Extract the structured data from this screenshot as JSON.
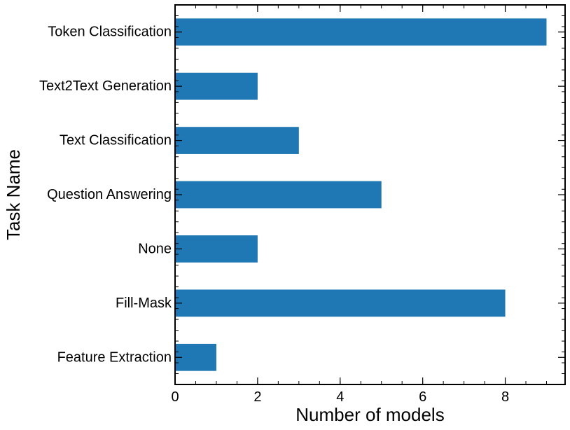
{
  "chart_data": {
    "type": "bar",
    "orientation": "horizontal",
    "categories": [
      "Token Classification",
      "Text2Text Generation",
      "Text Classification",
      "Question Answering",
      "None",
      "Fill-Mask",
      "Feature Extraction"
    ],
    "values": [
      9,
      2,
      3,
      5,
      2,
      8,
      1
    ],
    "xlabel": "Number of models",
    "ylabel": "Task Name",
    "xlim": [
      0,
      9.45
    ],
    "xticks": [
      0,
      2,
      4,
      6,
      8
    ],
    "grid": false,
    "bar_color": "#1f77b4"
  }
}
